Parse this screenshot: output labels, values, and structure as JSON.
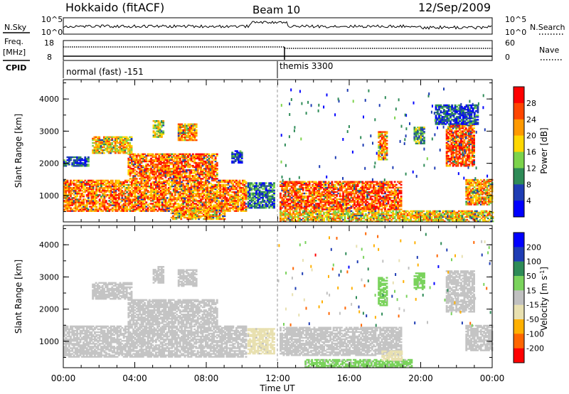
{
  "header": {
    "station": "Hokkaido (fitACF)",
    "beam": "Beam 10",
    "date": "12/Sep/2009"
  },
  "strips": {
    "nsky_label": "N.Sky",
    "nsky_ticks": [
      "10^5",
      "10^0"
    ],
    "nsearch_label": "N.Search",
    "nsearch_ticks": [
      "10^5",
      "10^0"
    ],
    "freq_label_1": "Freq.",
    "freq_label_2": "[MHz]",
    "freq_ticks": [
      "18",
      "8"
    ],
    "nave_label": "Nave",
    "nave_ticks": [
      "60",
      "0"
    ],
    "cpid_label": "CPID",
    "cpid_segments": [
      {
        "name": "normal (fast) -151",
        "start_hour": 0
      },
      {
        "name": "themis 3300",
        "start_hour": 12
      }
    ]
  },
  "chart_data": [
    {
      "type": "heatmap",
      "title": "",
      "xlabel": "Time UT",
      "ylabel": "Slant Range [km]",
      "x_ticks": [
        "00:00",
        "04:00",
        "08:00",
        "12:00",
        "16:00",
        "20:00",
        "00:00"
      ],
      "xlim_hours": [
        0,
        24
      ],
      "ylim": [
        180,
        4600
      ],
      "y_ticks": [
        1000,
        2000,
        3000,
        4000
      ],
      "colorbar": {
        "label": "Power [dB]",
        "ticks": [
          "28",
          "24",
          "20",
          "16",
          "12",
          "8",
          "4"
        ],
        "range": [
          0,
          30
        ],
        "colors": [
          "#0000ff",
          "#1e3cb4",
          "#2e8b57",
          "#7cd34b",
          "#ffd700",
          "#ff9900",
          "#ff4500",
          "#ff0000"
        ]
      },
      "echo_regions": [
        {
          "t0": 0.0,
          "t1": 10.2,
          "r0": 500,
          "r1": 1450,
          "value": 22
        },
        {
          "t0": 3.6,
          "t1": 8.6,
          "r0": 1500,
          "r1": 2300,
          "value": 23
        },
        {
          "t0": 1.6,
          "t1": 3.8,
          "r0": 2300,
          "r1": 2800,
          "value": 18
        },
        {
          "t0": 5.0,
          "t1": 5.6,
          "r0": 2800,
          "r1": 3300,
          "value": 16
        },
        {
          "t0": 6.4,
          "t1": 7.4,
          "r0": 2700,
          "r1": 3200,
          "value": 20
        },
        {
          "t0": 9.4,
          "t1": 10.0,
          "r0": 2000,
          "r1": 2400,
          "value": 6
        },
        {
          "t0": 10.3,
          "t1": 11.8,
          "r0": 600,
          "r1": 1400,
          "value": 8
        },
        {
          "t0": 6.0,
          "t1": 9.0,
          "r0": 250,
          "r1": 550,
          "value": 20
        },
        {
          "t0": 12.1,
          "t1": 18.9,
          "r0": 550,
          "r1": 1450,
          "value": 24
        },
        {
          "t0": 12.1,
          "t1": 24.0,
          "r0": 180,
          "r1": 500,
          "value": 18
        },
        {
          "t0": 17.6,
          "t1": 18.1,
          "r0": 2100,
          "r1": 3000,
          "value": 20
        },
        {
          "t0": 19.6,
          "t1": 20.2,
          "r0": 2600,
          "r1": 3100,
          "value": 12
        },
        {
          "t0": 21.4,
          "t1": 23.0,
          "r0": 1900,
          "r1": 3200,
          "value": 24
        },
        {
          "t0": 22.5,
          "t1": 24.0,
          "r0": 700,
          "r1": 1500,
          "value": 20
        },
        {
          "t0": 20.8,
          "t1": 23.2,
          "r0": 3200,
          "r1": 3800,
          "value": 6
        },
        {
          "t0": 0.0,
          "t1": 1.4,
          "r0": 1900,
          "r1": 2200,
          "value": 6
        }
      ]
    },
    {
      "type": "heatmap",
      "title": "",
      "xlabel": "Time UT",
      "ylabel": "Slant Range [km]",
      "x_ticks": [
        "00:00",
        "04:00",
        "08:00",
        "12:00",
        "16:00",
        "20:00",
        "00:00"
      ],
      "xlim_hours": [
        0,
        24
      ],
      "ylim": [
        180,
        4600
      ],
      "y_ticks": [
        1000,
        2000,
        3000,
        4000
      ],
      "colorbar": {
        "label": "Velocity [m s^-1]",
        "ticks": [
          "200",
          "100",
          "50",
          "15",
          "-15",
          "-50",
          "-100",
          "-200"
        ],
        "range": [
          -250,
          250
        ],
        "colors": [
          "#ff0000",
          "#ff6600",
          "#ffb000",
          "#e8e0b0",
          "#c0c0c0",
          "#7ad35c",
          "#2e8b57",
          "#1e3cb4",
          "#0000ff"
        ]
      },
      "ground_scatter_color": "#c4c4c4",
      "echo_regions": [
        {
          "t0": 0.0,
          "t1": 10.2,
          "r0": 500,
          "r1": 1450,
          "value": 0
        },
        {
          "t0": 3.6,
          "t1": 8.6,
          "r0": 1500,
          "r1": 2300,
          "value": 0
        },
        {
          "t0": 1.6,
          "t1": 3.8,
          "r0": 2300,
          "r1": 2800,
          "value": 0
        },
        {
          "t0": 5.0,
          "t1": 5.6,
          "r0": 2800,
          "r1": 3300,
          "value": 0
        },
        {
          "t0": 6.4,
          "t1": 7.4,
          "r0": 2700,
          "r1": 3200,
          "value": 0
        },
        {
          "t0": 10.3,
          "t1": 11.8,
          "r0": 600,
          "r1": 1400,
          "value": -40
        },
        {
          "t0": 12.1,
          "t1": 18.9,
          "r0": 550,
          "r1": 1450,
          "value": 0
        },
        {
          "t0": 13.5,
          "t1": 19.5,
          "r0": 180,
          "r1": 450,
          "value": 40
        },
        {
          "t0": 17.6,
          "t1": 18.1,
          "r0": 2100,
          "r1": 3000,
          "value": 50
        },
        {
          "t0": 19.6,
          "t1": 20.2,
          "r0": 2600,
          "r1": 3100,
          "value": 50
        },
        {
          "t0": 21.4,
          "t1": 23.0,
          "r0": 1900,
          "r1": 3200,
          "value": 0
        },
        {
          "t0": 22.5,
          "t1": 24.0,
          "r0": 700,
          "r1": 1500,
          "value": 0
        },
        {
          "t0": 17.8,
          "t1": 18.9,
          "r0": 400,
          "r1": 700,
          "value": -60
        }
      ]
    }
  ]
}
